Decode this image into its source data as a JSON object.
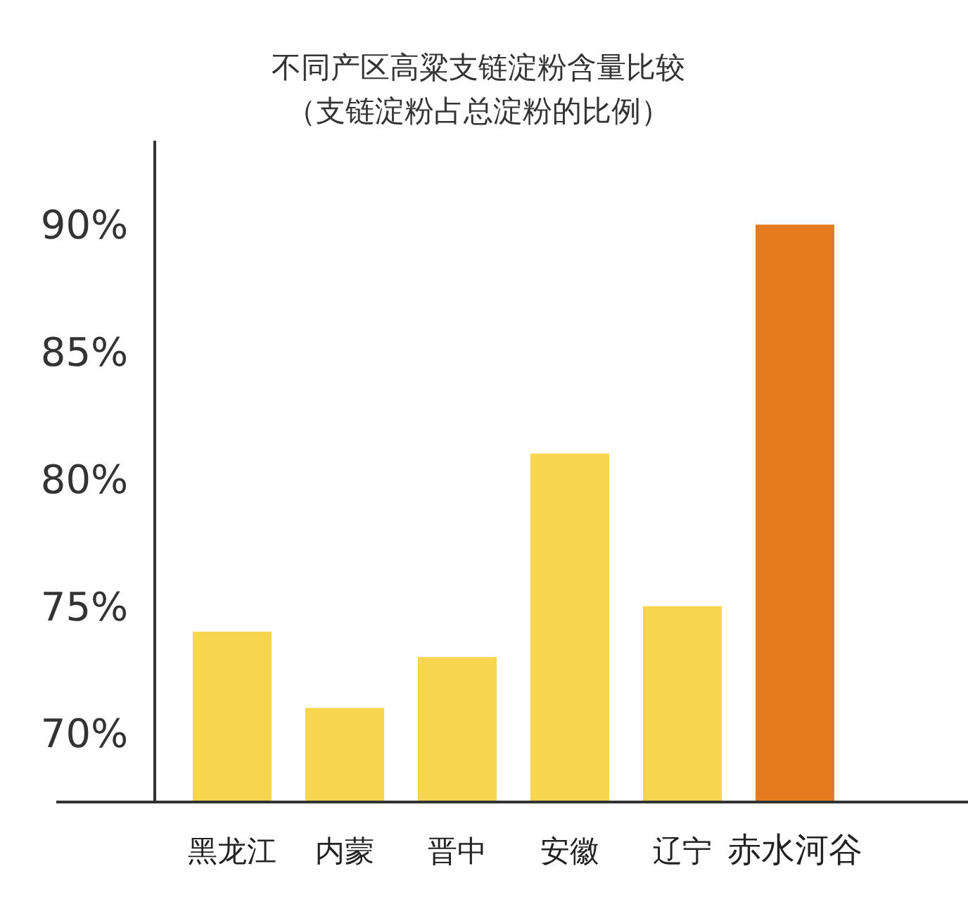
{
  "chart_data": {
    "type": "bar",
    "title": "不同产区高粱支链淀粉含量比较",
    "subtitle": "（支链淀粉占总淀粉的比例）",
    "categories": [
      "黑龙江",
      "内蒙",
      "晋中",
      "安徽",
      "辽宁",
      "赤水河谷"
    ],
    "values": [
      74,
      71,
      73,
      81,
      75,
      90
    ],
    "colors": [
      "#f8d54e",
      "#f8d54e",
      "#f8d54e",
      "#f8d54e",
      "#f8d54e",
      "#e57a1f"
    ],
    "ylim": [
      67.3,
      93.3
    ],
    "yticks": [
      {
        "value": 70,
        "label": "70%"
      },
      {
        "value": 75,
        "label": "75%"
      },
      {
        "value": 80,
        "label": "80%"
      },
      {
        "value": 85,
        "label": "85%"
      },
      {
        "value": 90,
        "label": "90%"
      }
    ],
    "grid": false
  }
}
